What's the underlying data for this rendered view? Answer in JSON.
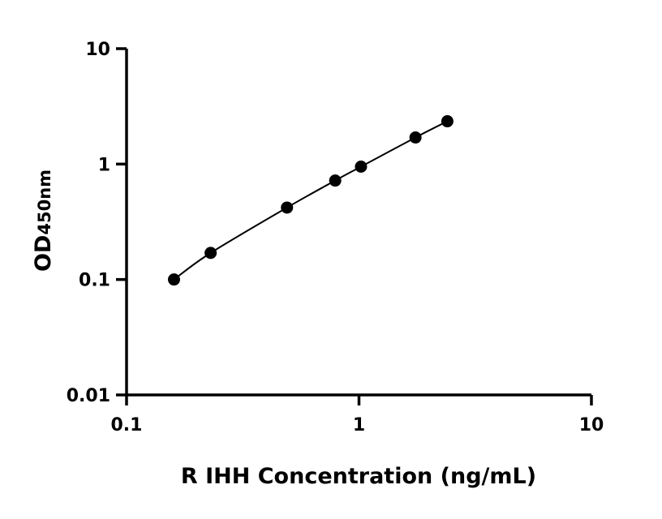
{
  "chart_data": {
    "type": "scatter",
    "title": "",
    "xlabel": "R IHH Concentration (ng/mL)",
    "ylabel": "OD",
    "ylabel_subscript": "450nm",
    "xscale": "log",
    "yscale": "log",
    "xlim": [
      0.1,
      10
    ],
    "ylim": [
      0.01,
      10
    ],
    "xticks": [
      0.1,
      1,
      10
    ],
    "xtick_labels": [
      "0.1",
      "1",
      "10"
    ],
    "yticks": [
      0.01,
      0.1,
      1,
      10
    ],
    "ytick_labels": [
      "0.01",
      "0.1",
      "1",
      "10"
    ],
    "grid": false,
    "legend": "none",
    "series": [
      {
        "x": [
          0.16,
          0.23,
          0.49,
          0.79,
          1.02,
          1.75,
          2.4
        ],
        "y": [
          0.1,
          0.17,
          0.42,
          0.72,
          0.95,
          1.7,
          2.35
        ],
        "marker": "filled-circle",
        "fit_curve": true,
        "color": "#000000"
      }
    ]
  }
}
